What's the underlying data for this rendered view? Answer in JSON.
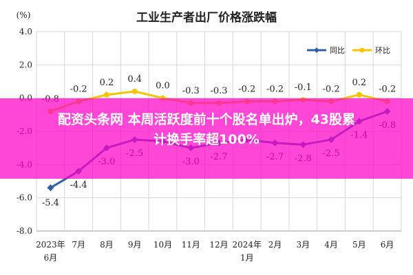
{
  "chart_data": {
    "type": "line",
    "title": "工业生产者出厂价格涨跌幅",
    "ylabel": "(%)",
    "xlabel": "",
    "categories": [
      "2023年6月",
      "7月",
      "8月",
      "9月",
      "10月",
      "11月",
      "12月",
      "2024年1月",
      "2月",
      "3月",
      "4月",
      "5月",
      "6月"
    ],
    "categories_display": [
      [
        "2023年",
        "6月"
      ],
      [
        "7月"
      ],
      [
        "8月"
      ],
      [
        "9月"
      ],
      [
        "10月"
      ],
      [
        "11月"
      ],
      [
        "12月"
      ],
      [
        "2024年",
        "1月"
      ],
      [
        "2月"
      ],
      [
        "3月"
      ],
      [
        "4月"
      ],
      [
        "5月"
      ],
      [
        "6月"
      ]
    ],
    "ylim": [
      -8.0,
      4.0
    ],
    "yticks": [
      "4.0",
      "2.0",
      "0.0",
      "-2.0",
      "-4.0",
      "-6.0",
      "-8.0"
    ],
    "series": [
      {
        "name": "同比",
        "color": "#2e5fa8",
        "marker": "diamond",
        "values": [
          -5.4,
          -4.4,
          -3.0,
          -2.5,
          -2.6,
          -3.0,
          -2.7,
          -2.5,
          -2.7,
          -2.8,
          -2.5,
          -1.4,
          -0.8
        ],
        "labels": [
          "-5.4",
          "-4.4",
          "-3.0",
          "-2.5",
          "",
          "-3.0",
          "-2.7",
          "",
          "-2.7",
          "-2.8",
          "-2.5",
          "-1.4",
          "-0.8"
        ]
      },
      {
        "name": "环比",
        "color": "#f5c400",
        "marker": "circle",
        "values": [
          -0.8,
          -0.2,
          0.2,
          0.4,
          0.0,
          -0.3,
          -0.3,
          -0.2,
          -0.2,
          -0.1,
          -0.2,
          0.2,
          -0.2
        ],
        "labels": [
          "-0.8",
          "-0.2",
          "0.2",
          "0.4",
          "0.0",
          "-0.3",
          "-0.3",
          "-0.2",
          "-0.2",
          "-0.1",
          "-0.2",
          "0.2",
          "-0.2"
        ]
      }
    ],
    "legend": "top-right",
    "grid": true
  },
  "overlay": {
    "line1": "配资头条网 本周活跃度前十个股名单出炉，43股累",
    "line2": "计换手率超100%"
  }
}
